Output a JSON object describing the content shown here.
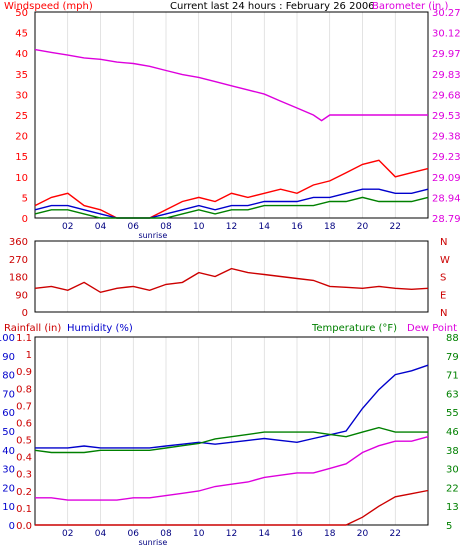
{
  "page": {
    "title": "Current last 24 hours : February 26 2006"
  },
  "colors": {
    "wind": "#ff0000",
    "wind_avg": "#0000cc",
    "wind_low": "#008000",
    "barometer": "#dd00dd",
    "direction": "#cc0000",
    "rain": "#cc0000",
    "humidity": "#0000cc",
    "temperature": "#008000",
    "dewpoint": "#dd00dd",
    "grid": "#d0d0d0",
    "frame": "#000000"
  },
  "chart_data": [
    {
      "id": "wind-baro",
      "type": "line",
      "title": "Current last 24 hours : February 26 2006",
      "left_label": "Windspeed (mph)",
      "right_label": "Barometer (in.)",
      "x_ticks": [
        "02",
        "04",
        "06",
        "08",
        "10",
        "12",
        "14",
        "16",
        "18",
        "20",
        "22"
      ],
      "x_extra_label": "sunrise",
      "x_extra_at": 7.2,
      "xlim": [
        0,
        24
      ],
      "ylim_left": [
        0,
        50
      ],
      "ylim_right": [
        28.79,
        30.27
      ],
      "left_ticks": [
        "0",
        "5",
        "10",
        "15",
        "20",
        "25",
        "30",
        "35",
        "40",
        "45",
        "50"
      ],
      "right_ticks": [
        "28.79",
        "28.94",
        "29.09",
        "29.23",
        "29.38",
        "29.53",
        "29.68",
        "29.83",
        "29.97",
        "30.12",
        "30.27"
      ],
      "series": [
        {
          "key": "barometer",
          "axis": "right",
          "x": [
            0,
            1,
            2,
            3,
            4,
            5,
            6,
            7,
            8,
            9,
            10,
            11,
            12,
            13,
            14,
            15,
            16,
            17,
            17.5,
            18,
            19,
            20,
            21,
            22,
            23,
            24
          ],
          "y": [
            30.0,
            29.98,
            29.96,
            29.94,
            29.93,
            29.91,
            29.9,
            29.88,
            29.85,
            29.82,
            29.8,
            29.77,
            29.74,
            29.71,
            29.68,
            29.63,
            29.58,
            29.53,
            29.49,
            29.53,
            29.53,
            29.53,
            29.53,
            29.53,
            29.53,
            29.53
          ]
        },
        {
          "key": "wind_gust",
          "axis": "left",
          "x": [
            0,
            1,
            2,
            3,
            4,
            5,
            6,
            7,
            8,
            9,
            10,
            11,
            12,
            13,
            14,
            15,
            16,
            17,
            18,
            19,
            20,
            21,
            22,
            23,
            24
          ],
          "y": [
            3,
            5,
            6,
            3,
            2,
            0,
            0,
            0,
            2,
            4,
            5,
            4,
            6,
            5,
            6,
            7,
            6,
            8,
            9,
            11,
            13,
            14,
            10,
            11,
            12
          ]
        },
        {
          "key": "wind_avg",
          "axis": "left",
          "x": [
            0,
            1,
            2,
            3,
            4,
            5,
            6,
            7,
            8,
            9,
            10,
            11,
            12,
            13,
            14,
            15,
            16,
            17,
            18,
            19,
            20,
            21,
            22,
            23,
            24
          ],
          "y": [
            2,
            3,
            3,
            2,
            1,
            0,
            0,
            0,
            1,
            2,
            3,
            2,
            3,
            3,
            4,
            4,
            4,
            5,
            5,
            6,
            7,
            7,
            6,
            6,
            7
          ]
        },
        {
          "key": "wind_low",
          "axis": "left",
          "x": [
            0,
            1,
            2,
            3,
            4,
            5,
            6,
            7,
            8,
            9,
            10,
            11,
            12,
            13,
            14,
            15,
            16,
            17,
            18,
            19,
            20,
            21,
            22,
            23,
            24
          ],
          "y": [
            1,
            2,
            2,
            1,
            0,
            0,
            0,
            0,
            0,
            1,
            2,
            1,
            2,
            2,
            3,
            3,
            3,
            3,
            4,
            4,
            5,
            4,
            4,
            4,
            5
          ]
        }
      ]
    },
    {
      "id": "direction",
      "type": "line",
      "left_ticks": [
        "0",
        "90",
        "180",
        "270",
        "360"
      ],
      "right_ticks": [
        "N",
        "E",
        "S",
        "W",
        "N"
      ],
      "ylim": [
        0,
        360
      ],
      "xlim": [
        0,
        24
      ],
      "series": [
        {
          "key": "direction",
          "x": [
            0,
            1,
            2,
            3,
            4,
            5,
            6,
            7,
            8,
            9,
            10,
            11,
            12,
            13,
            14,
            15,
            16,
            17,
            18,
            19,
            20,
            21,
            22,
            23,
            24
          ],
          "y": [
            120,
            130,
            110,
            150,
            100,
            120,
            130,
            110,
            140,
            150,
            200,
            180,
            220,
            200,
            190,
            180,
            170,
            160,
            130,
            125,
            120,
            130,
            120,
            115,
            120
          ]
        }
      ]
    },
    {
      "id": "rain-hum-temp",
      "type": "line",
      "left_label_1": "Rainfall (in)",
      "left_label_2": "Humidity (%)",
      "right_label_1": "Temperature (°F)",
      "right_label_2": "Dew Point",
      "x_ticks": [
        "02",
        "04",
        "06",
        "08",
        "10",
        "12",
        "14",
        "16",
        "18",
        "20",
        "22"
      ],
      "x_extra_label": "sunrise",
      "x_extra_at": 7.2,
      "xlim": [
        0,
        24
      ],
      "rain_ticks": [
        "0.0",
        "0.1",
        "0.2",
        "0.3",
        "0.4",
        "0.5",
        "0.6",
        "0.7",
        "0.8",
        "0.9",
        "1",
        "1.1"
      ],
      "humidity_ticks": [
        "0",
        "10",
        "20",
        "30",
        "40",
        "50",
        "60",
        "70",
        "80",
        "90",
        "100"
      ],
      "temp_ticks": [
        "5",
        "13",
        "22",
        "30",
        "38",
        "46",
        "55",
        "63",
        "71",
        "79",
        "88"
      ],
      "ylim_rain": [
        0,
        1.2
      ],
      "ylim_humidity": [
        0,
        100
      ],
      "ylim_temp": [
        5,
        88
      ],
      "series": [
        {
          "key": "humidity",
          "axis": "humidity",
          "x": [
            0,
            1,
            2,
            3,
            4,
            5,
            6,
            7,
            8,
            9,
            10,
            11,
            12,
            13,
            14,
            15,
            16,
            17,
            18,
            19,
            20,
            21,
            22,
            23,
            24
          ],
          "y": [
            41,
            41,
            41,
            42,
            41,
            41,
            41,
            41,
            42,
            43,
            44,
            43,
            44,
            45,
            46,
            45,
            44,
            46,
            48,
            50,
            62,
            72,
            80,
            82,
            85
          ]
        },
        {
          "key": "temperature",
          "axis": "temp",
          "x": [
            0,
            1,
            2,
            3,
            4,
            5,
            6,
            7,
            8,
            9,
            10,
            11,
            12,
            13,
            14,
            15,
            16,
            17,
            18,
            19,
            20,
            21,
            22,
            23,
            24
          ],
          "y": [
            38,
            37,
            37,
            37,
            38,
            38,
            38,
            38,
            39,
            40,
            41,
            43,
            44,
            45,
            46,
            46,
            46,
            46,
            45,
            44,
            46,
            48,
            46,
            46,
            46
          ]
        },
        {
          "key": "dewpoint",
          "axis": "temp",
          "x": [
            0,
            1,
            2,
            3,
            4,
            5,
            6,
            7,
            8,
            9,
            10,
            11,
            12,
            13,
            14,
            15,
            16,
            17,
            18,
            19,
            20,
            21,
            22,
            23,
            24
          ],
          "y": [
            17,
            17,
            16,
            16,
            16,
            16,
            17,
            17,
            18,
            19,
            20,
            22,
            23,
            24,
            26,
            27,
            28,
            28,
            30,
            32,
            37,
            40,
            42,
            42,
            44
          ]
        },
        {
          "key": "rain",
          "axis": "rain",
          "x": [
            0,
            1,
            2,
            3,
            4,
            5,
            6,
            7,
            8,
            9,
            10,
            11,
            12,
            13,
            14,
            15,
            16,
            17,
            18,
            19,
            20,
            21,
            22,
            23,
            24
          ],
          "y": [
            0,
            0,
            0,
            0,
            0,
            0,
            0,
            0,
            0,
            0,
            0,
            0,
            0,
            0,
            0,
            0,
            0,
            0,
            0,
            0,
            0.05,
            0.12,
            0.18,
            0.2,
            0.22
          ]
        }
      ]
    }
  ]
}
